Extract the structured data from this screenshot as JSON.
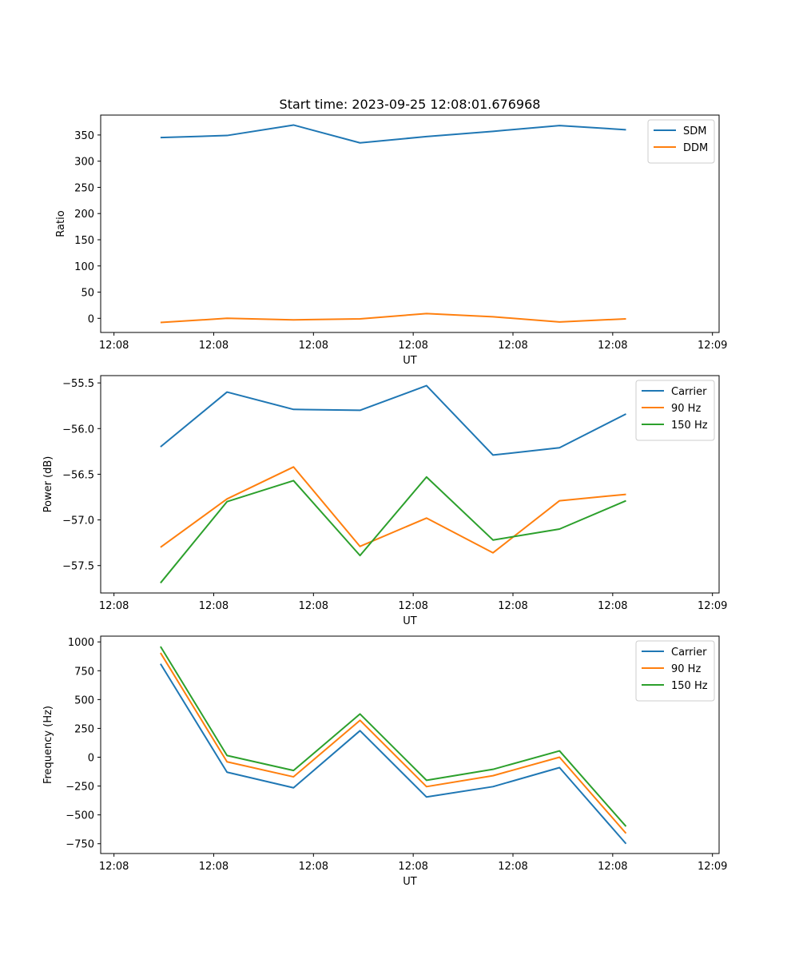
{
  "title": "Start time: 2023-09-25 12:08:01.676968",
  "chart_data": [
    {
      "type": "line",
      "id": "ratio",
      "xlabel": "UT",
      "ylabel": "Ratio",
      "xlim": [
        -0.9,
        8.4
      ],
      "ylim": [
        -27,
        388
      ],
      "x_ticks": [
        {
          "v": -0.7,
          "label": "12:08"
        },
        {
          "v": 0.8,
          "label": "12:08"
        },
        {
          "v": 2.3,
          "label": "12:08"
        },
        {
          "v": 3.8,
          "label": "12:08"
        },
        {
          "v": 5.3,
          "label": "12:08"
        },
        {
          "v": 6.8,
          "label": "12:08"
        },
        {
          "v": 8.3,
          "label": "12:09"
        }
      ],
      "y_ticks": [
        0,
        50,
        100,
        150,
        200,
        250,
        300,
        350
      ],
      "x": [
        0,
        1,
        2,
        3,
        4,
        5,
        6,
        7
      ],
      "legend_position": "top-right",
      "series": [
        {
          "name": "SDM",
          "color": "#1f77b4",
          "values": [
            345,
            349,
            369,
            335,
            347,
            357,
            368,
            360
          ]
        },
        {
          "name": "DDM",
          "color": "#ff7f0e",
          "values": [
            -8,
            0,
            -3,
            -1,
            9,
            3,
            -7,
            -1
          ]
        }
      ]
    },
    {
      "type": "line",
      "id": "power",
      "xlabel": "UT",
      "ylabel": "Power (dB)",
      "xlim": [
        -0.9,
        8.4
      ],
      "ylim": [
        -57.8,
        -55.42
      ],
      "x_ticks": [
        {
          "v": -0.7,
          "label": "12:08"
        },
        {
          "v": 0.8,
          "label": "12:08"
        },
        {
          "v": 2.3,
          "label": "12:08"
        },
        {
          "v": 3.8,
          "label": "12:08"
        },
        {
          "v": 5.3,
          "label": "12:08"
        },
        {
          "v": 6.8,
          "label": "12:08"
        },
        {
          "v": 8.3,
          "label": "12:09"
        }
      ],
      "y_ticks": [
        -57.5,
        -57.0,
        -56.5,
        -56.0,
        -55.5
      ],
      "y_tick_labels": [
        "−57.5",
        "−57.0",
        "−56.5",
        "−56.0",
        "−55.5"
      ],
      "x": [
        0,
        1,
        2,
        3,
        4,
        5,
        6,
        7
      ],
      "legend_position": "top-right",
      "series": [
        {
          "name": "Carrier",
          "color": "#1f77b4",
          "values": [
            -56.2,
            -55.6,
            -55.79,
            -55.8,
            -55.53,
            -56.29,
            -56.21,
            -55.84
          ]
        },
        {
          "name": "90 Hz",
          "color": "#ff7f0e",
          "values": [
            -57.3,
            -56.77,
            -56.42,
            -57.29,
            -56.98,
            -57.36,
            -56.79,
            -56.72
          ]
        },
        {
          "name": "150 Hz",
          "color": "#2ca02c",
          "values": [
            -57.69,
            -56.8,
            -56.57,
            -57.39,
            -56.53,
            -57.22,
            -57.1,
            -56.79
          ]
        }
      ]
    },
    {
      "type": "line",
      "id": "frequency",
      "xlabel": "UT",
      "ylabel": "Frequency (Hz)",
      "xlim": [
        -0.9,
        8.4
      ],
      "ylim": [
        -835,
        1050
      ],
      "x_ticks": [
        {
          "v": -0.7,
          "label": "12:08"
        },
        {
          "v": 0.8,
          "label": "12:08"
        },
        {
          "v": 2.3,
          "label": "12:08"
        },
        {
          "v": 3.8,
          "label": "12:08"
        },
        {
          "v": 5.3,
          "label": "12:08"
        },
        {
          "v": 6.8,
          "label": "12:08"
        },
        {
          "v": 8.3,
          "label": "12:09"
        }
      ],
      "y_ticks": [
        -750,
        -500,
        -250,
        0,
        250,
        500,
        750,
        1000
      ],
      "y_tick_labels": [
        "−750",
        "−500",
        "−250",
        "0",
        "250",
        "500",
        "750",
        "1000"
      ],
      "x": [
        0,
        1,
        2,
        3,
        4,
        5,
        6,
        7
      ],
      "legend_position": "top-right",
      "series": [
        {
          "name": "Carrier",
          "color": "#1f77b4",
          "values": [
            810,
            -130,
            -265,
            230,
            -345,
            -255,
            -90,
            -750
          ]
        },
        {
          "name": "90 Hz",
          "color": "#ff7f0e",
          "values": [
            905,
            -40,
            -170,
            320,
            -255,
            -160,
            0,
            -660
          ]
        },
        {
          "name": "150 Hz",
          "color": "#2ca02c",
          "values": [
            960,
            15,
            -115,
            375,
            -200,
            -105,
            55,
            -600
          ]
        }
      ]
    }
  ]
}
